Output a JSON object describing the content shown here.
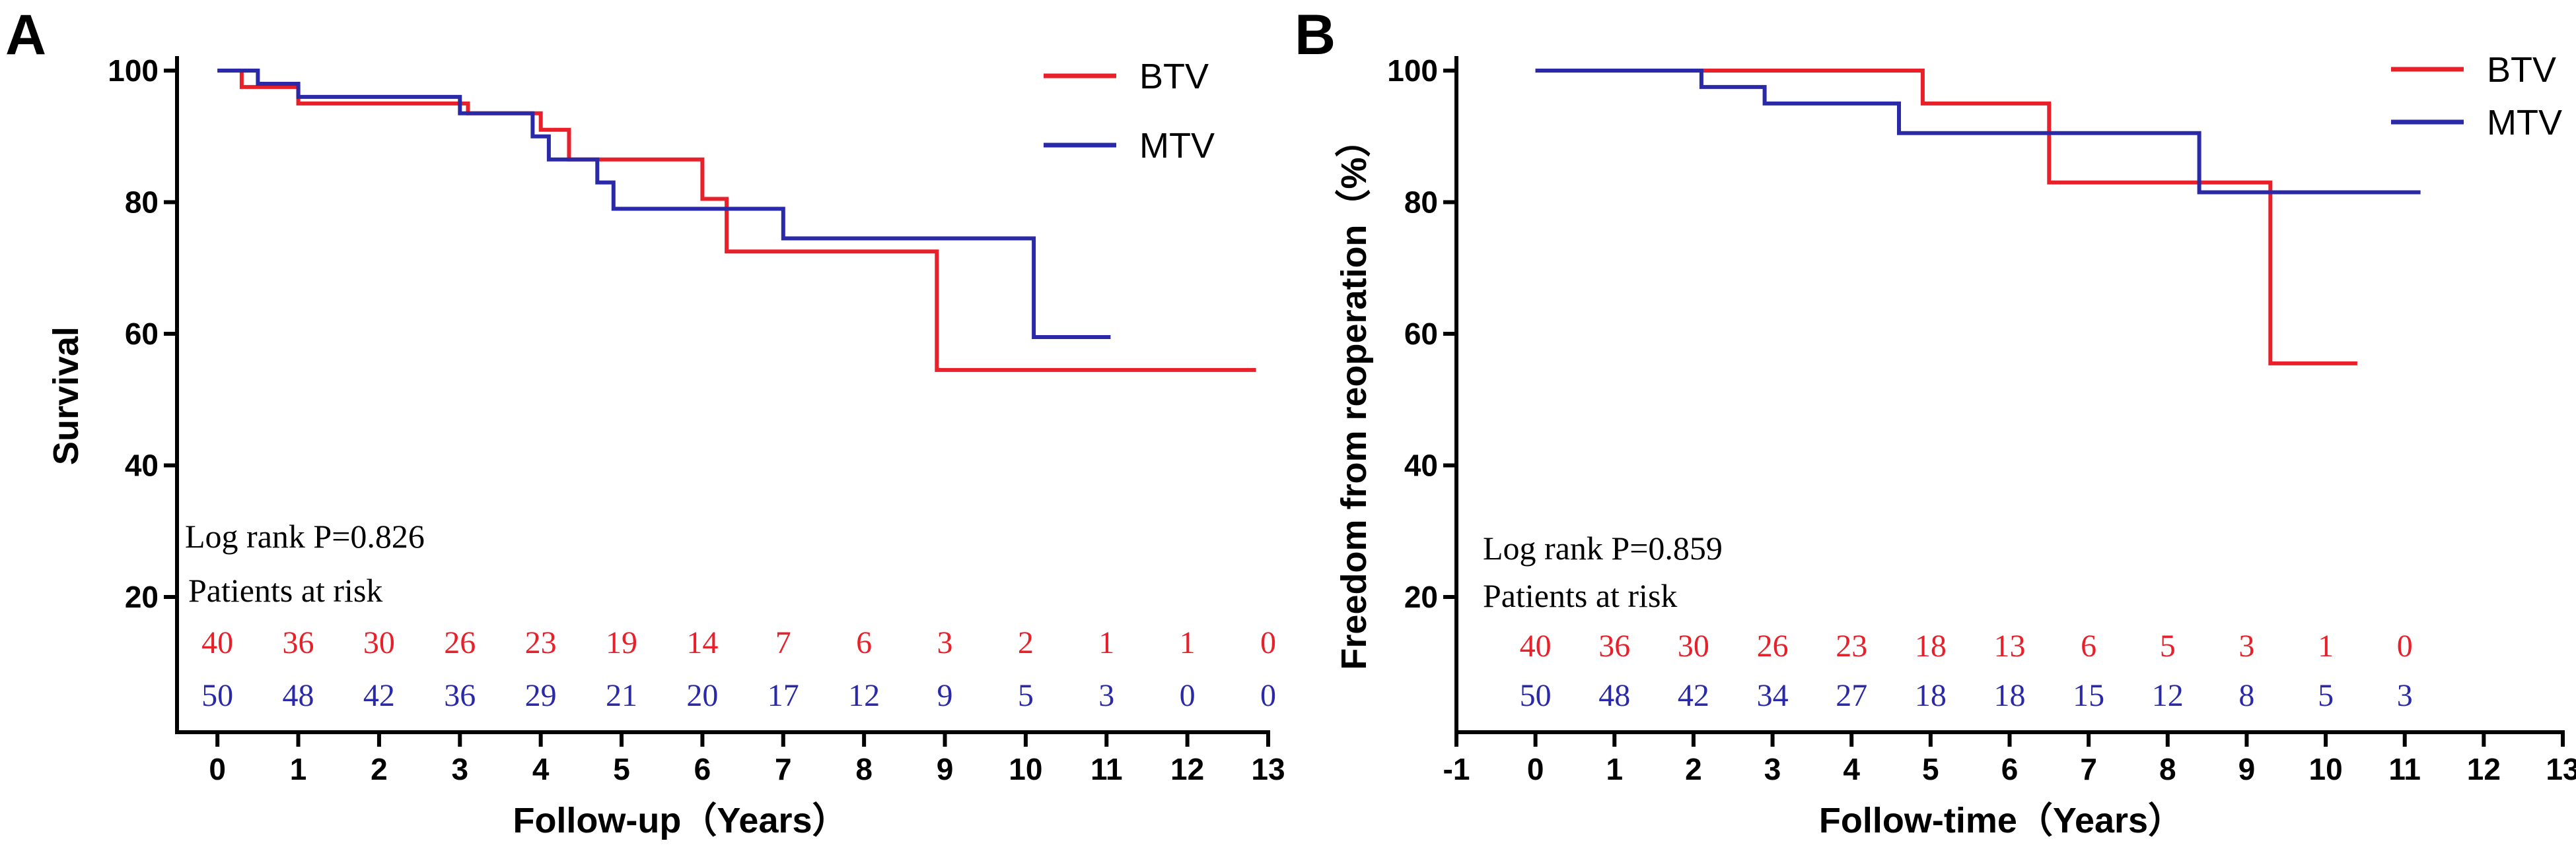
{
  "chart_data": [
    {
      "panel": "A",
      "type": "line",
      "step": true,
      "xlabel": "Follow-up（Years）",
      "ylabel": "Survival",
      "xlim": [
        -0.5,
        13
      ],
      "ylim": [
        10,
        100
      ],
      "xticks": [
        0,
        1,
        2,
        3,
        4,
        5,
        6,
        7,
        8,
        9,
        10,
        11,
        12,
        13
      ],
      "yticks": [
        20,
        40,
        60,
        80,
        100
      ],
      "legend": "top-right",
      "log_rank": "Log rank P=0.826",
      "risk_title": "Patients at risk",
      "risk_x": [
        0,
        1,
        2,
        3,
        4,
        5,
        6,
        7,
        8,
        9,
        10,
        11,
        12,
        13
      ],
      "series": [
        {
          "name": "BTV",
          "color": "#e8202a",
          "points": [
            [
              0,
              100
            ],
            [
              0.3,
              100
            ],
            [
              0.3,
              97.5
            ],
            [
              1,
              97.5
            ],
            [
              1,
              95
            ],
            [
              3.1,
              95
            ],
            [
              3.1,
              93.5
            ],
            [
              4,
              93.5
            ],
            [
              4,
              91
            ],
            [
              4.35,
              91
            ],
            [
              4.35,
              86.5
            ],
            [
              6,
              86.5
            ],
            [
              6,
              80.5
            ],
            [
              6.3,
              80.5
            ],
            [
              6.3,
              72.5
            ],
            [
              8.9,
              72.5
            ],
            [
              8.9,
              54.5
            ],
            [
              12.85,
              54.5
            ]
          ],
          "at_risk": [
            "40",
            "36",
            "30",
            "26",
            "23",
            "19",
            "14",
            "7",
            "6",
            "3",
            "2",
            "1",
            "1",
            "0"
          ]
        },
        {
          "name": "MTV",
          "color": "#2a2aa8",
          "points": [
            [
              0,
              100
            ],
            [
              0.5,
              100
            ],
            [
              0.5,
              98
            ],
            [
              1,
              98
            ],
            [
              1,
              96
            ],
            [
              3,
              96
            ],
            [
              3,
              93.5
            ],
            [
              3.9,
              93.5
            ],
            [
              3.9,
              90
            ],
            [
              4.1,
              90
            ],
            [
              4.1,
              86.5
            ],
            [
              4.7,
              86.5
            ],
            [
              4.7,
              83
            ],
            [
              4.9,
              83
            ],
            [
              4.9,
              79
            ],
            [
              7,
              79
            ],
            [
              7,
              74.5
            ],
            [
              10.1,
              74.5
            ],
            [
              10.1,
              59.5
            ],
            [
              11.05,
              59.5
            ]
          ],
          "at_risk": [
            "50",
            "48",
            "42",
            "36",
            "29",
            "21",
            "20",
            "17",
            "12",
            "9",
            "5",
            "3",
            "0",
            "0"
          ]
        }
      ]
    },
    {
      "panel": "B",
      "type": "line",
      "step": true,
      "xlabel": "Follow-time（Years）",
      "ylabel": "Freedom from reoperation（%）",
      "xlim": [
        -1,
        13
      ],
      "ylim": [
        10,
        100
      ],
      "xticks": [
        -1,
        0,
        1,
        2,
        3,
        4,
        5,
        6,
        7,
        8,
        9,
        10,
        11,
        12,
        13
      ],
      "yticks": [
        20,
        40,
        60,
        80,
        100
      ],
      "legend": "top-right",
      "log_rank": "Log rank P=0.859",
      "risk_title": "Patients at risk",
      "risk_x": [
        0,
        1,
        2,
        3,
        4,
        5,
        6,
        7,
        8,
        9,
        10,
        11
      ],
      "series": [
        {
          "name": "BTV",
          "color": "#e8202a",
          "points": [
            [
              0,
              100
            ],
            [
              4.9,
              100
            ],
            [
              4.9,
              95
            ],
            [
              6.5,
              95
            ],
            [
              6.5,
              83
            ],
            [
              9.3,
              83
            ],
            [
              9.3,
              55.5
            ],
            [
              10.4,
              55.5
            ]
          ],
          "at_risk": [
            "40",
            "36",
            "30",
            "26",
            "23",
            "18",
            "13",
            "6",
            "5",
            "3",
            "1",
            "0"
          ]
        },
        {
          "name": "MTV",
          "color": "#2a2aa8",
          "points": [
            [
              0,
              100
            ],
            [
              2.1,
              100
            ],
            [
              2.1,
              97.5
            ],
            [
              2.9,
              97.5
            ],
            [
              2.9,
              95
            ],
            [
              4.6,
              95
            ],
            [
              4.6,
              90.5
            ],
            [
              8.4,
              90.5
            ],
            [
              8.4,
              81.5
            ],
            [
              11.2,
              81.5
            ]
          ],
          "at_risk": [
            "50",
            "48",
            "42",
            "34",
            "27",
            "18",
            "18",
            "15",
            "12",
            "8",
            "5",
            "3"
          ]
        }
      ]
    }
  ]
}
